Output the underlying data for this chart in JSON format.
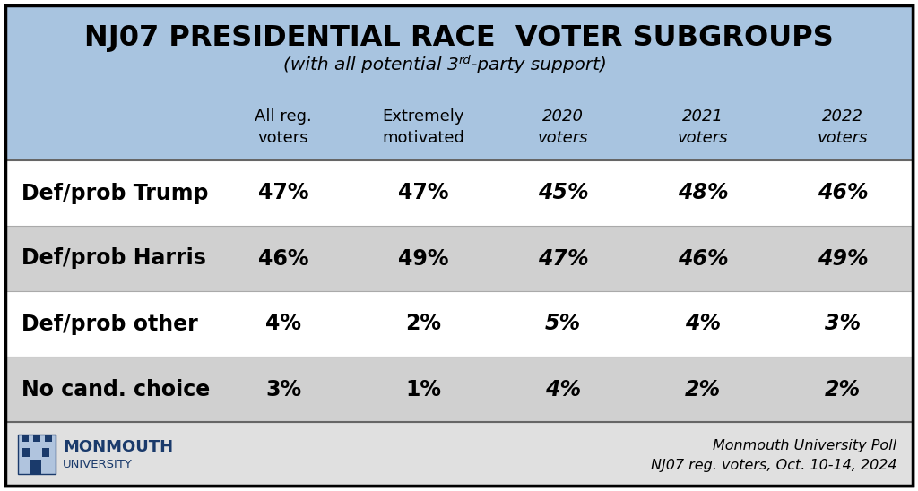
{
  "title": "NJ07 PRESIDENTIAL RACE  VOTER SUBGROUPS",
  "subtitle_parts": [
    "(with all potential 3",
    "rd",
    "-party support)"
  ],
  "col_headers": [
    [
      "All reg.",
      "voters"
    ],
    [
      "Extremely",
      "motivated"
    ],
    [
      "2020",
      "voters"
    ],
    [
      "2021",
      "voters"
    ],
    [
      "2022",
      "voters"
    ]
  ],
  "col_headers_italic": [
    false,
    false,
    true,
    true,
    true
  ],
  "rows": [
    {
      "label": "Def/prob Trump",
      "values": [
        "47%",
        "47%",
        "45%",
        "48%",
        "46%"
      ],
      "bg": "#ffffff",
      "label_italic": false,
      "values_italic": [
        false,
        false,
        true,
        true,
        true
      ]
    },
    {
      "label": "Def/prob Harris",
      "values": [
        "46%",
        "49%",
        "47%",
        "46%",
        "49%"
      ],
      "bg": "#d0d0d0",
      "label_italic": false,
      "values_italic": [
        false,
        false,
        true,
        true,
        true
      ]
    },
    {
      "label": "Def/prob other",
      "values": [
        "4%",
        "2%",
        "5%",
        "4%",
        "3%"
      ],
      "bg": "#ffffff",
      "label_italic": false,
      "values_italic": [
        false,
        false,
        true,
        true,
        true
      ]
    },
    {
      "label": "No cand. choice",
      "values": [
        "3%",
        "1%",
        "4%",
        "2%",
        "2%"
      ],
      "bg": "#d0d0d0",
      "label_italic": false,
      "values_italic": [
        false,
        false,
        true,
        true,
        true
      ]
    }
  ],
  "footer_right_line1": "Monmouth University Poll",
  "footer_right_line2": "NJ07 reg. voters, Oct. 10-14, 2024",
  "header_bg": "#a8c4e0",
  "footer_bg": "#e0e0e0",
  "white_bg": "#ffffff",
  "border_color": "#000000",
  "title_fontsize": 23,
  "subtitle_fontsize": 14.5,
  "header_fontsize": 13,
  "cell_fontsize": 17,
  "footer_fontsize": 11.5,
  "monmouth_fontsize": 13,
  "university_fontsize": 9.5
}
